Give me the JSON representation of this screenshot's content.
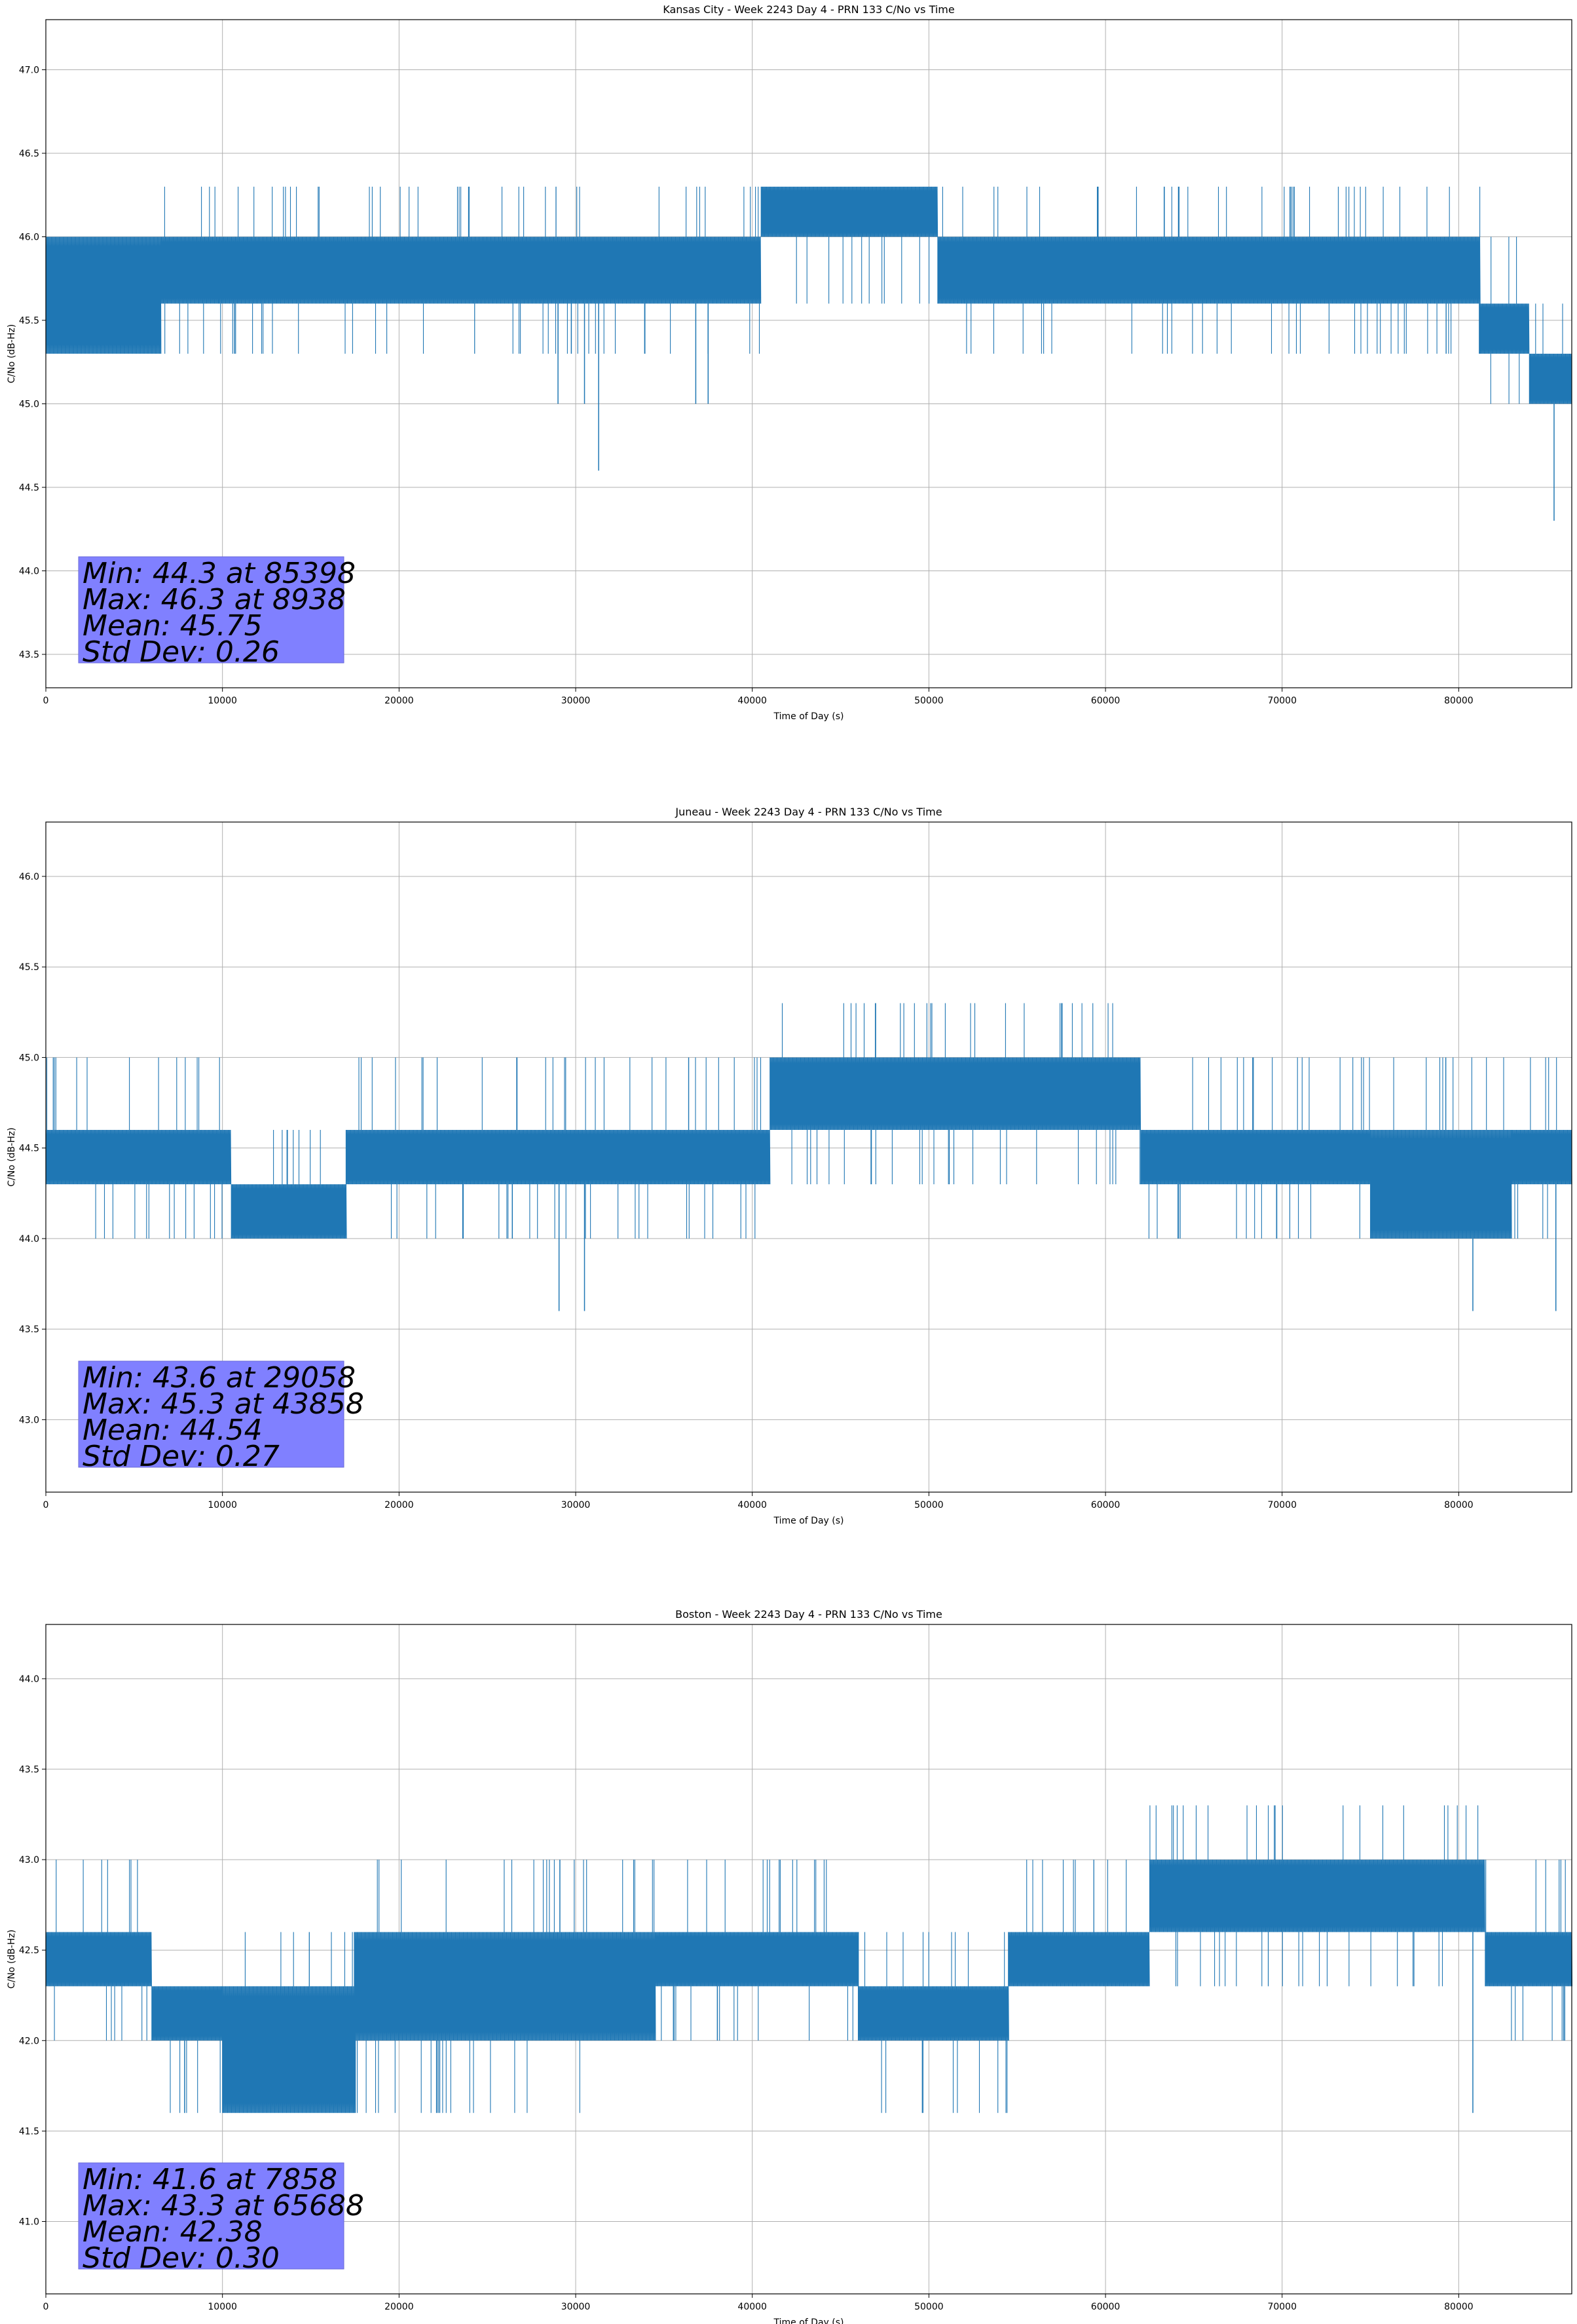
{
  "chart_data": [
    {
      "type": "line",
      "title": "Kansas City - Week 2243 Day 4 - PRN 133 C/No vs Time",
      "xlabel": "Time of Day (s)",
      "ylabel": "C/No (dB-Hz)",
      "xlim": [
        0,
        86400
      ],
      "ylim": [
        43.3,
        47.3
      ],
      "xticks": [
        0,
        10000,
        20000,
        30000,
        40000,
        50000,
        60000,
        70000,
        80000
      ],
      "yticks": [
        "43.5",
        "44.0",
        "44.5",
        "45.0",
        "45.5",
        "46.0",
        "46.5",
        "47.0"
      ],
      "grid": true,
      "series_color": "#1f77b4",
      "stats": [
        "Min: 44.3 at 85398",
        "Max: 46.3 at 8938",
        "Mean: 45.75",
        "Std Dev: 0.26"
      ],
      "segments": [
        {
          "x": [
            0,
            6500
          ],
          "lo": 45.3,
          "hi": 46.0,
          "up": 46.0,
          "dn": 45.3
        },
        {
          "x": [
            6500,
            9800
          ],
          "lo": 45.6,
          "hi": 46.0,
          "up": 46.3,
          "dn": 45.3
        },
        {
          "x": [
            9800,
            40500
          ],
          "lo": 45.6,
          "hi": 46.0,
          "up": 46.3,
          "dn": 45.3
        },
        {
          "x": [
            40500,
            50500
          ],
          "lo": 46.0,
          "hi": 46.3,
          "up": 46.3,
          "dn": 45.6
        },
        {
          "x": [
            50500,
            52000
          ],
          "lo": 45.6,
          "hi": 46.0,
          "up": 46.3,
          "dn": 45.6
        },
        {
          "x": [
            52000,
            81200
          ],
          "lo": 45.6,
          "hi": 46.0,
          "up": 46.3,
          "dn": 45.3
        },
        {
          "x": [
            81200,
            84000
          ],
          "lo": 45.3,
          "hi": 45.6,
          "up": 46.0,
          "dn": 45.0
        },
        {
          "x": [
            84000,
            86400
          ],
          "lo": 45.0,
          "hi": 45.3,
          "up": 45.6,
          "dn": 45.0
        }
      ],
      "spikes": [
        [
          29000,
          45.0
        ],
        [
          30500,
          45.0
        ],
        [
          31300,
          44.6
        ],
        [
          36800,
          45.0
        ],
        [
          37500,
          45.0
        ],
        [
          85398,
          44.3
        ]
      ]
    },
    {
      "type": "line",
      "title": "Juneau - Week 2243 Day 4 - PRN 133 C/No vs Time",
      "xlabel": "Time of Day (s)",
      "ylabel": "C/No (dB-Hz)",
      "xlim": [
        0,
        86400
      ],
      "ylim": [
        42.6,
        46.3
      ],
      "xticks": [
        0,
        10000,
        20000,
        30000,
        40000,
        50000,
        60000,
        70000,
        80000
      ],
      "yticks": [
        "43.0",
        "43.5",
        "44.0",
        "44.5",
        "45.0",
        "45.5",
        "46.0"
      ],
      "grid": true,
      "series_color": "#1f77b4",
      "stats": [
        "Min: 43.6 at 29058",
        "Max: 45.3 at 43858",
        "Mean: 44.54",
        "Std Dev: 0.27"
      ],
      "segments": [
        {
          "x": [
            0,
            10500
          ],
          "lo": 44.3,
          "hi": 44.6,
          "up": 45.0,
          "dn": 44.0
        },
        {
          "x": [
            10500,
            17000
          ],
          "lo": 44.0,
          "hi": 44.3,
          "up": 44.6,
          "dn": 44.0
        },
        {
          "x": [
            17000,
            41000
          ],
          "lo": 44.3,
          "hi": 44.6,
          "up": 45.0,
          "dn": 44.0
        },
        {
          "x": [
            41000,
            62000
          ],
          "lo": 44.6,
          "hi": 45.0,
          "up": 45.3,
          "dn": 44.3
        },
        {
          "x": [
            62000,
            75000
          ],
          "lo": 44.3,
          "hi": 44.6,
          "up": 45.0,
          "dn": 44.0
        },
        {
          "x": [
            75000,
            83000
          ],
          "lo": 44.0,
          "hi": 44.6,
          "up": 45.0,
          "dn": 44.0
        },
        {
          "x": [
            83000,
            86400
          ],
          "lo": 44.3,
          "hi": 44.6,
          "up": 45.0,
          "dn": 44.0
        }
      ],
      "spikes": [
        [
          29058,
          43.6
        ],
        [
          30500,
          43.6
        ],
        [
          80800,
          43.6
        ],
        [
          85500,
          43.6
        ]
      ]
    },
    {
      "type": "line",
      "title": "Boston - Week 2243 Day 4 - PRN 133 C/No vs Time",
      "xlabel": "Time of Day (s)",
      "ylabel": "C/No (dB-Hz)",
      "xlim": [
        0,
        86400
      ],
      "ylim": [
        40.6,
        44.3
      ],
      "xticks": [
        0,
        10000,
        20000,
        30000,
        40000,
        50000,
        60000,
        70000,
        80000
      ],
      "yticks": [
        "41.0",
        "41.5",
        "42.0",
        "42.5",
        "43.0",
        "43.5",
        "44.0"
      ],
      "grid": true,
      "series_color": "#1f77b4",
      "stats": [
        "Min: 41.6 at 7858",
        "Max: 43.3 at 65688",
        "Mean: 42.38",
        "Std Dev: 0.30"
      ],
      "segments": [
        {
          "x": [
            0,
            6000
          ],
          "lo": 42.3,
          "hi": 42.6,
          "up": 43.0,
          "dn": 42.0
        },
        {
          "x": [
            6000,
            10000
          ],
          "lo": 42.0,
          "hi": 42.3,
          "up": 42.3,
          "dn": 41.6
        },
        {
          "x": [
            10000,
            17500
          ],
          "lo": 41.6,
          "hi": 42.3,
          "up": 42.6,
          "dn": 41.6
        },
        {
          "x": [
            17500,
            34500
          ],
          "lo": 42.0,
          "hi": 42.6,
          "up": 43.0,
          "dn": 41.6
        },
        {
          "x": [
            34500,
            46000
          ],
          "lo": 42.3,
          "hi": 42.6,
          "up": 43.0,
          "dn": 42.0
        },
        {
          "x": [
            46000,
            54500
          ],
          "lo": 42.0,
          "hi": 42.3,
          "up": 42.6,
          "dn": 41.6
        },
        {
          "x": [
            54500,
            62500
          ],
          "lo": 42.3,
          "hi": 42.6,
          "up": 43.0,
          "dn": 42.3
        },
        {
          "x": [
            62500,
            81500
          ],
          "lo": 42.6,
          "hi": 43.0,
          "up": 43.3,
          "dn": 42.3
        },
        {
          "x": [
            81500,
            86400
          ],
          "lo": 42.3,
          "hi": 42.6,
          "up": 43.0,
          "dn": 42.0
        }
      ],
      "spikes": [
        [
          7858,
          41.6
        ],
        [
          80800,
          41.6
        ],
        [
          86000,
          42.0
        ]
      ]
    }
  ]
}
